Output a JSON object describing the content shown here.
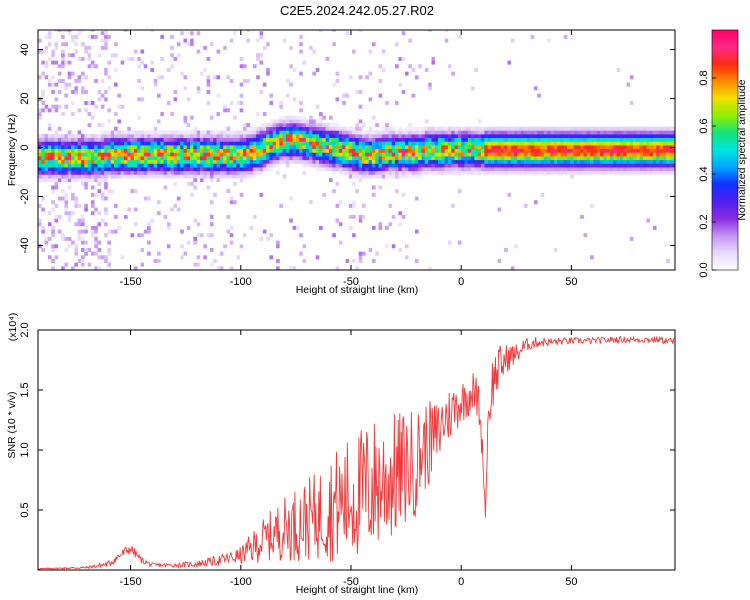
{
  "title": "C2E5.2024.242.05.27.R02",
  "colors": {
    "snr_line": "#ee3a3a",
    "colormap": [
      "#ffffff",
      "#e7d8fb",
      "#c495f2",
      "#8a2be2",
      "#4f20f0",
      "#1030ff",
      "#00a6ff",
      "#00e5e0",
      "#15e37a",
      "#8ef000",
      "#f0e000",
      "#ff8a00",
      "#ff2a10",
      "#ff2a88",
      "#ff0066"
    ]
  },
  "chart_data": [
    {
      "type": "heatmap",
      "title": "C2E5.2024.242.05.27.R02",
      "xlabel": "Height of straight line (km)",
      "ylabel": "Frequency (Hz)",
      "xlim": [
        -192,
        97
      ],
      "ylim": [
        -50,
        48
      ],
      "xticks": [
        -150,
        -100,
        -50,
        0,
        50
      ],
      "yticks": [
        -40,
        -20,
        0,
        20,
        40
      ],
      "colorbar": {
        "label": "Normalized spectral amplitude",
        "range": [
          0,
          1
        ],
        "ticks": [
          "0.0",
          "0.2",
          "0.4",
          "0.6",
          "0.8"
        ]
      },
      "ridge": {
        "x": [
          -185,
          -175,
          -165,
          -160,
          -150,
          -140,
          -130,
          -120,
          -110,
          -100,
          -95,
          -90,
          -85,
          -80,
          -75,
          -70,
          -65,
          -60,
          -55,
          -50,
          -45,
          -40,
          -35,
          -30,
          -25,
          -20,
          -15,
          -10,
          -5,
          0,
          5,
          10,
          20,
          30,
          50,
          70,
          90,
          97
        ],
        "y": [
          -4,
          -4,
          -4,
          -3,
          -3,
          -3,
          -3,
          -3,
          -3,
          -3,
          -2,
          0,
          2,
          3,
          3,
          2,
          1,
          0,
          -1,
          -2,
          -3,
          -3,
          -2,
          -2,
          -2,
          -2,
          -1,
          -1,
          -1,
          -1,
          -1,
          -1,
          -1,
          -1,
          -1,
          -1,
          -1,
          -1
        ],
        "halfwidth_hz": 4,
        "peak": 0.95
      }
    },
    {
      "type": "line",
      "xlabel": "Height of straight line (km)",
      "ylabel": "SNR (10 * v/v)",
      "y_multiplier": "(x10⁴)",
      "xlim": [
        -192,
        97
      ],
      "ylim": [
        0,
        2.0
      ],
      "xticks": [
        -150,
        -100,
        -50,
        0,
        50
      ],
      "yticks": [
        "0.5",
        "1.0",
        "1.5",
        "2.0"
      ],
      "series": [
        {
          "x": [
            -192,
            -170,
            -160,
            -155,
            -150,
            -145,
            -140,
            -130,
            -120,
            -110,
            -105,
            -100,
            -95,
            -90,
            -85,
            -80,
            -75,
            -70,
            -65,
            -60,
            -55,
            -50,
            -45,
            -40,
            -35,
            -30,
            -25,
            -20,
            -18,
            -15,
            -12,
            -10,
            -8,
            -5,
            -3,
            0,
            3,
            5,
            8,
            10,
            11,
            12,
            14,
            16,
            18,
            20,
            22,
            25,
            28,
            30,
            35,
            40,
            50,
            60,
            70,
            80,
            90,
            97
          ],
          "values": [
            0.01,
            0.02,
            0.05,
            0.12,
            0.18,
            0.08,
            0.04,
            0.04,
            0.05,
            0.08,
            0.1,
            0.12,
            0.18,
            0.25,
            0.3,
            0.35,
            0.38,
            0.42,
            0.45,
            0.52,
            0.55,
            0.6,
            0.65,
            0.7,
            0.75,
            0.78,
            0.85,
            0.9,
            1.0,
            1.05,
            1.1,
            1.15,
            1.25,
            1.3,
            1.35,
            1.4,
            1.45,
            1.5,
            1.4,
            0.9,
            0.45,
            1.2,
            1.55,
            1.65,
            1.7,
            1.75,
            1.78,
            1.8,
            1.85,
            1.88,
            1.9,
            1.9,
            1.91,
            1.91,
            1.92,
            1.92,
            1.92,
            1.9
          ],
          "noise_amplitude": [
            0.005,
            0.01,
            0.03,
            0.05,
            0.05,
            0.03,
            0.02,
            0.02,
            0.03,
            0.05,
            0.06,
            0.08,
            0.15,
            0.2,
            0.25,
            0.3,
            0.35,
            0.38,
            0.42,
            0.5,
            0.55,
            0.6,
            0.62,
            0.65,
            0.6,
            0.6,
            0.55,
            0.5,
            0.45,
            0.4,
            0.35,
            0.3,
            0.3,
            0.25,
            0.25,
            0.2,
            0.2,
            0.2,
            0.2,
            0.1,
            0.05,
            0.2,
            0.25,
            0.25,
            0.2,
            0.15,
            0.12,
            0.1,
            0.08,
            0.06,
            0.05,
            0.04,
            0.03,
            0.03,
            0.03,
            0.03,
            0.03,
            0.04
          ]
        }
      ]
    }
  ]
}
